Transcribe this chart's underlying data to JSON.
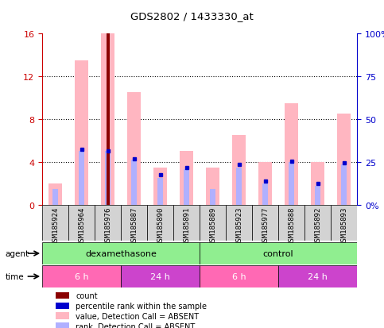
{
  "title": "GDS2802 / 1433330_at",
  "samples": [
    "GSM185924",
    "GSM185964",
    "GSM185976",
    "GSM185887",
    "GSM185890",
    "GSM185891",
    "GSM185889",
    "GSM185923",
    "GSM185977",
    "GSM185888",
    "GSM185892",
    "GSM185893"
  ],
  "value_bars": [
    2.0,
    13.5,
    16.0,
    10.5,
    3.5,
    5.0,
    3.5,
    6.5,
    4.0,
    9.5,
    4.0,
    8.5
  ],
  "rank_bars": [
    1.5,
    5.0,
    5.0,
    4.2,
    2.5,
    3.3,
    1.5,
    3.5,
    2.0,
    4.0,
    1.8,
    3.8
  ],
  "count_bar_index": 2,
  "count_bar_value": 16.0,
  "ylim": [
    0,
    16
  ],
  "yticks_left": [
    0,
    4,
    8,
    12,
    16
  ],
  "yticks_right": [
    0,
    25,
    50,
    75,
    100
  ],
  "yticklabels_left": [
    "0",
    "4",
    "8",
    "12",
    "16"
  ],
  "yticklabels_right": [
    "0%",
    "25",
    "50",
    "75",
    "100%"
  ],
  "color_value_bar": "#FFB6C1",
  "color_rank_bar": "#B0B0FF",
  "color_count_bar": "#8B0000",
  "color_blue_dot": "#0000CD",
  "agent_groups": [
    {
      "label": "dexamethasone",
      "start": 0,
      "end": 6,
      "color": "#90EE90"
    },
    {
      "label": "control",
      "start": 6,
      "end": 12,
      "color": "#90EE90"
    }
  ],
  "time_groups": [
    {
      "label": "6 h",
      "start": 0,
      "end": 3,
      "color": "#FF69B4"
    },
    {
      "label": "24 h",
      "start": 3,
      "end": 6,
      "color": "#CC44CC"
    },
    {
      "label": "6 h",
      "start": 6,
      "end": 9,
      "color": "#FF69B4"
    },
    {
      "label": "24 h",
      "start": 9,
      "end": 12,
      "color": "#CC44CC"
    }
  ],
  "legend_items": [
    {
      "color": "#8B0000",
      "label": "count"
    },
    {
      "color": "#0000CD",
      "label": "percentile rank within the sample"
    },
    {
      "color": "#FFB6C1",
      "label": "value, Detection Call = ABSENT"
    },
    {
      "color": "#B0B0FF",
      "label": "rank, Detection Call = ABSENT"
    }
  ],
  "left_axis_color": "#CC0000",
  "right_axis_color": "#0000CC",
  "dotted_line_y": [
    4,
    8,
    12
  ],
  "blue_dots": [
    {
      "index": 1,
      "value": 5.2
    },
    {
      "index": 2,
      "value": 5.0
    },
    {
      "index": 3,
      "value": 4.3
    },
    {
      "index": 4,
      "value": 2.8
    },
    {
      "index": 5,
      "value": 3.5
    },
    {
      "index": 7,
      "value": 3.8
    },
    {
      "index": 8,
      "value": 2.2
    },
    {
      "index": 9,
      "value": 4.1
    },
    {
      "index": 10,
      "value": 2.0
    },
    {
      "index": 11,
      "value": 3.9
    }
  ]
}
